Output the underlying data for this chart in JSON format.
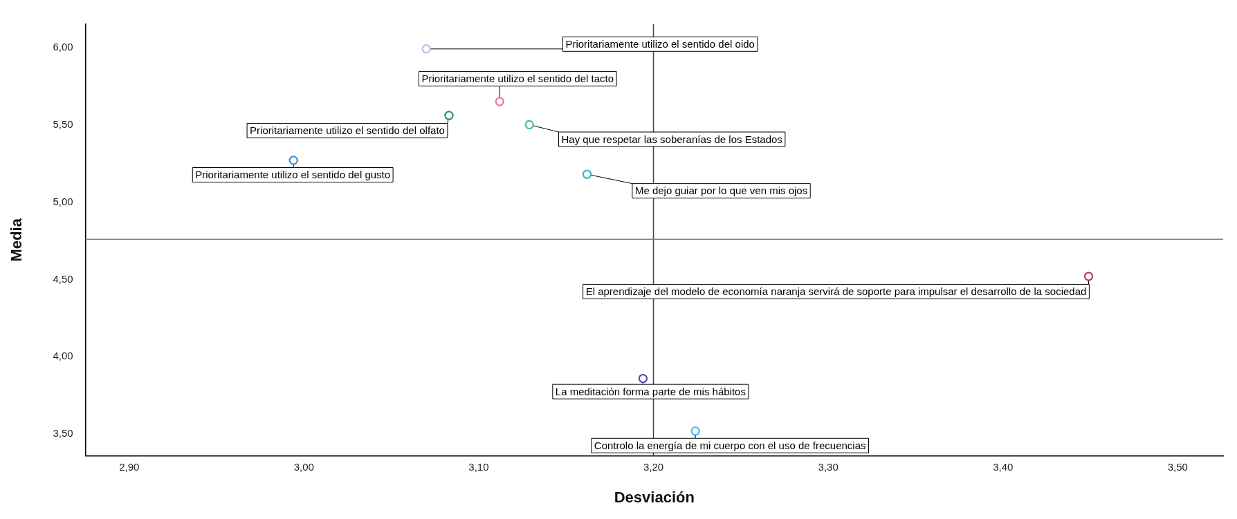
{
  "chart_data": {
    "type": "scatter",
    "xlabel": "Desviación",
    "ylabel": "Media",
    "x": [
      3.07,
      3.112,
      3.083,
      3.129,
      2.994,
      3.162,
      3.449,
      3.194,
      3.224
    ],
    "values": [
      5.99,
      5.65,
      5.56,
      5.5,
      5.27,
      5.18,
      4.52,
      3.86,
      3.52
    ],
    "colors": [
      "#c8b4f0",
      "#f07896",
      "#2a8c82",
      "#3cbeb4",
      "#3c8cdc",
      "#3cb4b4",
      "#b43c64",
      "#6446b4",
      "#50b4f0"
    ],
    "marker": "circle",
    "grid": false,
    "legend": false,
    "xlim": [
      2.875,
      3.526
    ],
    "ylim": [
      3.36,
      6.15
    ],
    "xticks": [
      {
        "value": 2.9,
        "label": "2,90"
      },
      {
        "value": 3.0,
        "label": "3,00"
      },
      {
        "value": 3.1,
        "label": "3,10"
      },
      {
        "value": 3.2,
        "label": "3,20"
      },
      {
        "value": 3.3,
        "label": "3,30"
      },
      {
        "value": 3.4,
        "label": "3,40"
      },
      {
        "value": 3.5,
        "label": "3,50"
      }
    ],
    "yticks": [
      {
        "value": 3.5,
        "label": "3,50"
      },
      {
        "value": 4.0,
        "label": "4,00"
      },
      {
        "value": 4.5,
        "label": "4,50"
      },
      {
        "value": 5.0,
        "label": "5,00"
      },
      {
        "value": 5.5,
        "label": "5,50"
      },
      {
        "value": 6.0,
        "label": "6,00"
      }
    ],
    "ref_lines": [
      {
        "axis": "x",
        "value": 3.2,
        "color": "#404040"
      },
      {
        "axis": "y",
        "value": 4.76,
        "color": "#808080"
      }
    ],
    "annotations": [
      {
        "text": "Prioritariamente utilizo el sentido del oido",
        "x": 3.07,
        "y": 5.99
      },
      {
        "text": "Prioritariamente utilizo el sentido del tacto",
        "x": 3.112,
        "y": 5.65
      },
      {
        "text": "Prioritariamente utilizo el sentido del olfato",
        "x": 3.083,
        "y": 5.56
      },
      {
        "text": "Hay que respetar las soberanías de los Estados",
        "x": 3.129,
        "y": 5.5
      },
      {
        "text": "Prioritariamente utilizo el sentido del gusto",
        "x": 2.994,
        "y": 5.27
      },
      {
        "text": "Me dejo guiar por lo que ven mis ojos",
        "x": 3.162,
        "y": 5.18
      },
      {
        "text": "El aprendizaje del modelo de economía naranja servirá de soporte para impulsar el desarrollo de la sociedad",
        "x": 3.449,
        "y": 4.52
      },
      {
        "text": "La meditación forma parte de mis hábitos",
        "x": 3.194,
        "y": 3.86
      },
      {
        "text": "Controlo la energía de mi cuerpo con el uso de frecuencias",
        "x": 3.224,
        "y": 3.52
      }
    ]
  }
}
